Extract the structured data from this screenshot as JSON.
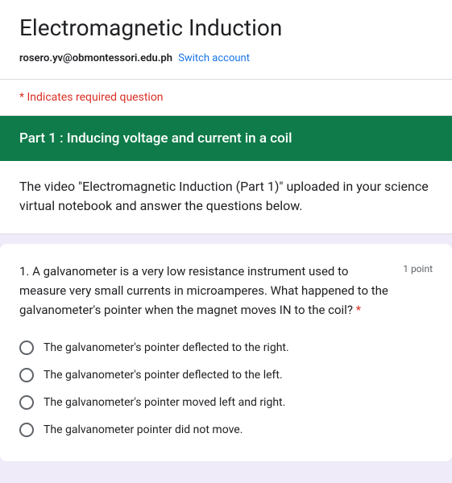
{
  "header": {
    "title": "Electromagnetic Induction",
    "email": "rosero.yv@obmontessori.edu.ph",
    "switch_text": "Switch account"
  },
  "required_note": "* Indicates required question",
  "section": {
    "title": "Part 1 : Inducing voltage and current in a coil",
    "description": "The video \"Electromagnetic Induction (Part 1)\" uploaded in your science virtual notebook and answer the questions below."
  },
  "question": {
    "text": "1. A galvanometer is a very low resistance instrument used to measure very small currents in microamperes. What happened to the galvanometer's pointer when the magnet moves IN to the coil?",
    "required_mark": "*",
    "points": "1 point",
    "options": [
      "The galvanometer's pointer deflected to the right.",
      "The galvanometer's pointer deflected to the left.",
      "The galvanometer's pointer moved left and right.",
      "The galvanometer pointer did not move."
    ]
  },
  "colors": {
    "section_bg": "#0f7b4a",
    "link": "#1a73e8",
    "required": "#d93025",
    "text": "#202124",
    "muted": "#5f6368"
  }
}
